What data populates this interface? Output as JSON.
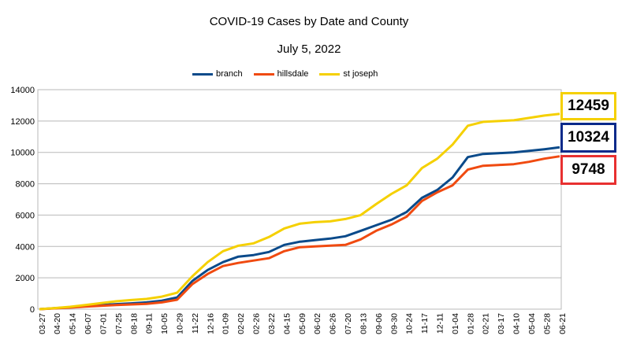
{
  "chart_data": {
    "type": "line",
    "title": "COVID-19 Cases by Date and County",
    "subtitle": "July 5, 2022",
    "xlabel": "",
    "ylabel": "",
    "ylim": [
      0,
      14000
    ],
    "yticks": [
      "0",
      "2000",
      "4000",
      "6000",
      "8000",
      "10000",
      "12000",
      "14000"
    ],
    "grid": "horizontal",
    "legend_position": "top",
    "x_tick_labels": [
      "03-27",
      "04-20",
      "05-14",
      "06-07",
      "07-01",
      "07-25",
      "08-18",
      "09-11",
      "10-05",
      "10-29",
      "11-22",
      "12-16",
      "01-09",
      "02-02",
      "02-26",
      "03-22",
      "04-15",
      "05-09",
      "06-02",
      "06-26",
      "07-20",
      "08-13",
      "09-06",
      "09-30",
      "10-24",
      "11-17",
      "12-11",
      "01-04",
      "01-28",
      "02-21",
      "03-17",
      "04-10",
      "05-04",
      "05-28",
      "06-21"
    ],
    "series": [
      {
        "name": "branch",
        "color": "#0a4a8a",
        "values": [
          0,
          60,
          120,
          200,
          260,
          320,
          370,
          430,
          540,
          750,
          1800,
          2500,
          3000,
          3350,
          3450,
          3650,
          4100,
          4300,
          4400,
          4500,
          4650,
          5000,
          5350,
          5700,
          6200,
          7100,
          7600,
          8400,
          9700,
          9900,
          9950,
          10000,
          10100,
          10200,
          10324
        ]
      },
      {
        "name": "hillsdale",
        "color": "#f04a10",
        "values": [
          0,
          50,
          100,
          160,
          210,
          260,
          300,
          340,
          430,
          600,
          1600,
          2250,
          2750,
          2950,
          3100,
          3250,
          3700,
          3950,
          4000,
          4050,
          4100,
          4450,
          5000,
          5400,
          5900,
          6900,
          7450,
          7900,
          8900,
          9150,
          9200,
          9250,
          9400,
          9600,
          9748
        ]
      },
      {
        "name": "st joseph",
        "color": "#f5d000",
        "values": [
          0,
          70,
          150,
          260,
          380,
          500,
          580,
          650,
          800,
          1050,
          2100,
          3000,
          3700,
          4050,
          4200,
          4600,
          5150,
          5450,
          5550,
          5600,
          5750,
          6000,
          6700,
          7350,
          7900,
          9000,
          9600,
          10500,
          11700,
          11950,
          12000,
          12050,
          12200,
          12350,
          12459
        ]
      }
    ],
    "callouts": [
      {
        "series": "st joseph",
        "value": "12459"
      },
      {
        "series": "branch",
        "value": "10324"
      },
      {
        "series": "hillsdale",
        "value": "9748"
      }
    ]
  }
}
